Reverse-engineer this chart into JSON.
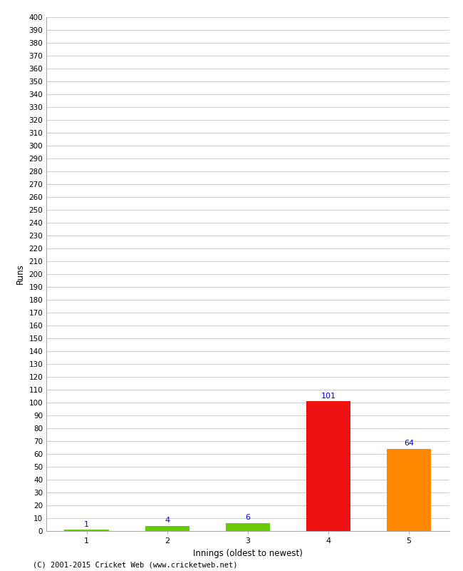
{
  "xlabel": "Innings (oldest to newest)",
  "ylabel": "Runs",
  "categories": [
    1,
    2,
    3,
    4,
    5
  ],
  "values": [
    1,
    4,
    6,
    101,
    64
  ],
  "bar_colors": [
    "#66cc00",
    "#66cc00",
    "#66cc00",
    "#ee1111",
    "#ff8800"
  ],
  "label_color": "#0000cc",
  "ylim": [
    0,
    400
  ],
  "background_color": "#ffffff",
  "grid_color": "#cccccc",
  "footer": "(C) 2001-2015 Cricket Web (www.cricketweb.net)"
}
